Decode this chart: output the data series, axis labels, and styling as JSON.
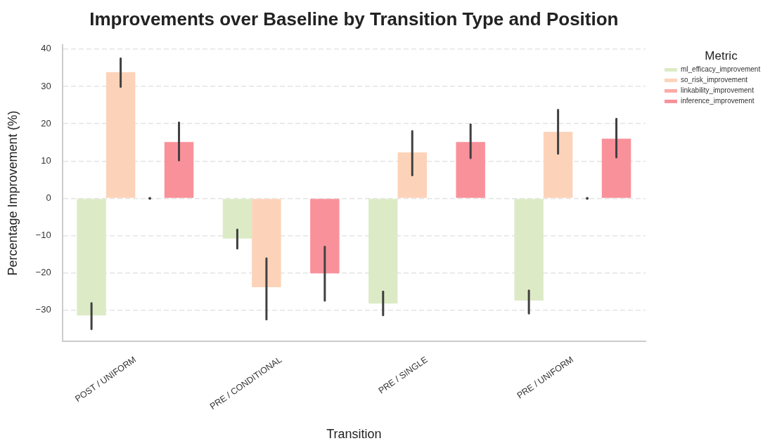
{
  "chart_data": {
    "type": "bar",
    "title": "Improvements over Baseline by Transition Type and Position",
    "xlabel": "Transition",
    "ylabel": "Percentage Improvement (%)",
    "legend_title": "Metric",
    "categories": [
      "POST / UNIFORM",
      "PRE / CONDITIONAL",
      "PRE / SINGLE",
      "PRE / UNIFORM"
    ],
    "series": [
      {
        "name": "ml_efficacy_improvement",
        "color": "#dcebc5",
        "values": [
          -31.4,
          -10.8,
          -28.2,
          -27.4
        ],
        "errors": [
          [
            -35.0,
            -28.1
          ],
          [
            -13.4,
            -8.4
          ],
          [
            -31.3,
            -25.0
          ],
          [
            -30.8,
            -24.7
          ]
        ]
      },
      {
        "name": "so_risk_improvement",
        "color": "#fcd3b9",
        "values": [
          33.8,
          -23.8,
          12.3,
          17.8
        ],
        "errors": [
          [
            29.9,
            37.5
          ],
          [
            -32.4,
            -16.1
          ],
          [
            6.2,
            18.0
          ],
          [
            12.0,
            23.7
          ]
        ]
      },
      {
        "name": "linkability_improvement",
        "color": "#fcaaa8",
        "values": [
          0,
          0,
          0,
          0
        ],
        "errors": [
          [
            0,
            0
          ],
          null,
          null,
          [
            0,
            0
          ]
        ]
      },
      {
        "name": "inference_improvement",
        "color": "#f9919a",
        "values": [
          15.1,
          -20.1,
          15.1,
          16.0
        ],
        "errors": [
          [
            10.2,
            20.3
          ],
          [
            -27.4,
            -13.0
          ],
          [
            10.8,
            19.8
          ],
          [
            11.0,
            21.3
          ]
        ]
      }
    ],
    "ylim": [
      -38.3,
      41.1
    ],
    "yticks": [
      -30,
      -20,
      -10,
      0,
      10,
      20,
      30,
      40
    ],
    "grid": "y",
    "legend": "top right"
  }
}
